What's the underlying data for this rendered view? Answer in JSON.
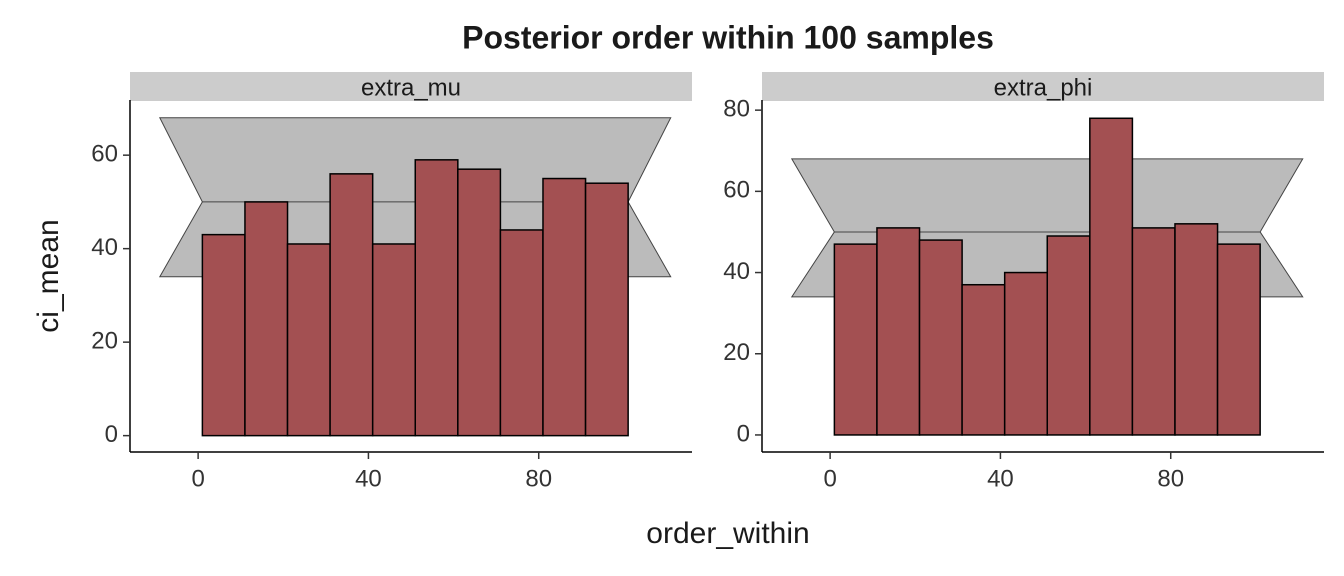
{
  "title": "Posterior order within 100 samples",
  "x_label": "order_within",
  "y_label": "ci_mean",
  "chart_data": [
    {
      "type": "histogram",
      "panel": "extra_mu",
      "color": "#a35052",
      "band_color": "#bbbbbb",
      "bins": [
        1,
        11,
        21,
        31,
        41,
        51,
        61,
        71,
        81,
        91,
        101
      ],
      "values": [
        43,
        50,
        41,
        56,
        41,
        59,
        57,
        44,
        55,
        54
      ],
      "ci_lower": 34,
      "ci_mean": 50,
      "ci_upper": 68,
      "xlim": [
        -16,
        116
      ],
      "ylim": [
        -3.5,
        71.8
      ],
      "xticks": [
        0,
        40,
        80
      ],
      "yticks": [
        0,
        20,
        40,
        60
      ]
    },
    {
      "type": "histogram",
      "panel": "extra_phi",
      "color": "#a35052",
      "band_color": "#bbbbbb",
      "bins": [
        1,
        11,
        21,
        31,
        41,
        51,
        61,
        71,
        81,
        91,
        101
      ],
      "values": [
        47,
        51,
        48,
        37,
        40,
        49,
        78,
        51,
        52,
        47
      ],
      "ci_lower": 34,
      "ci_mean": 50,
      "ci_upper": 68,
      "xlim": [
        -16,
        116
      ],
      "ylim": [
        -4.2,
        82.5
      ],
      "xticks": [
        0,
        40,
        80
      ],
      "yticks": [
        0,
        20,
        40,
        60,
        80
      ]
    }
  ]
}
